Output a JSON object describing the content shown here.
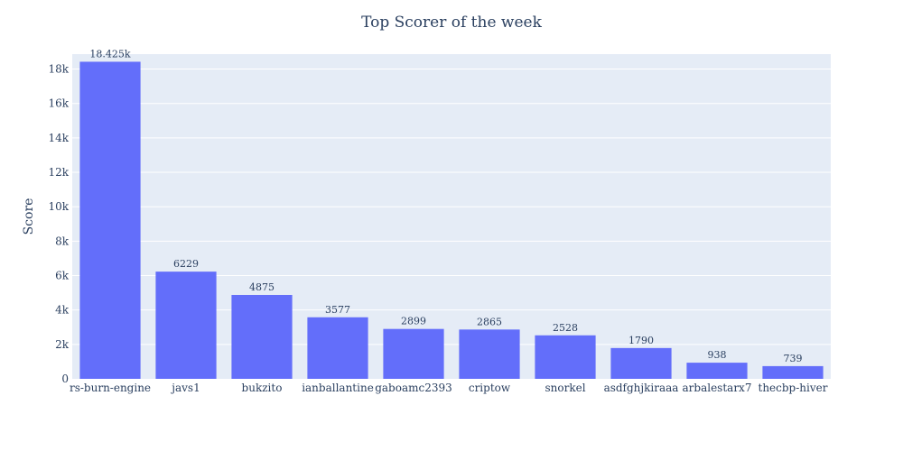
{
  "chart_data": {
    "type": "bar",
    "title": "Top Scorer of the week",
    "xlabel": "",
    "ylabel": "Score",
    "ylim": [
      0,
      18868
    ],
    "yticks": [
      0,
      2000,
      4000,
      6000,
      8000,
      10000,
      12000,
      14000,
      16000,
      18000
    ],
    "ytick_labels": [
      "0",
      "2k",
      "4k",
      "6k",
      "8k",
      "10k",
      "12k",
      "14k",
      "16k",
      "18k"
    ],
    "grid": true,
    "categories": [
      "rs-burn-engine",
      "javs1",
      "bukzito",
      "ianballantine",
      "gaboamc2393",
      "criptow",
      "snorkel",
      "asdfghjkiraaa",
      "arbalestarx7",
      "thecbp-hiver"
    ],
    "values": [
      18425,
      6229,
      4875,
      3577,
      2899,
      2865,
      2528,
      1790,
      938,
      739
    ],
    "data_labels": [
      "18.425k",
      "6229",
      "4875",
      "3577",
      "2899",
      "2865",
      "2528",
      "1790",
      "938",
      "739"
    ],
    "colors": {
      "bar": "#636efa",
      "plot_bg": "#e5ecf6",
      "grid": "#ffffff",
      "text": "#2a3f5f"
    }
  }
}
